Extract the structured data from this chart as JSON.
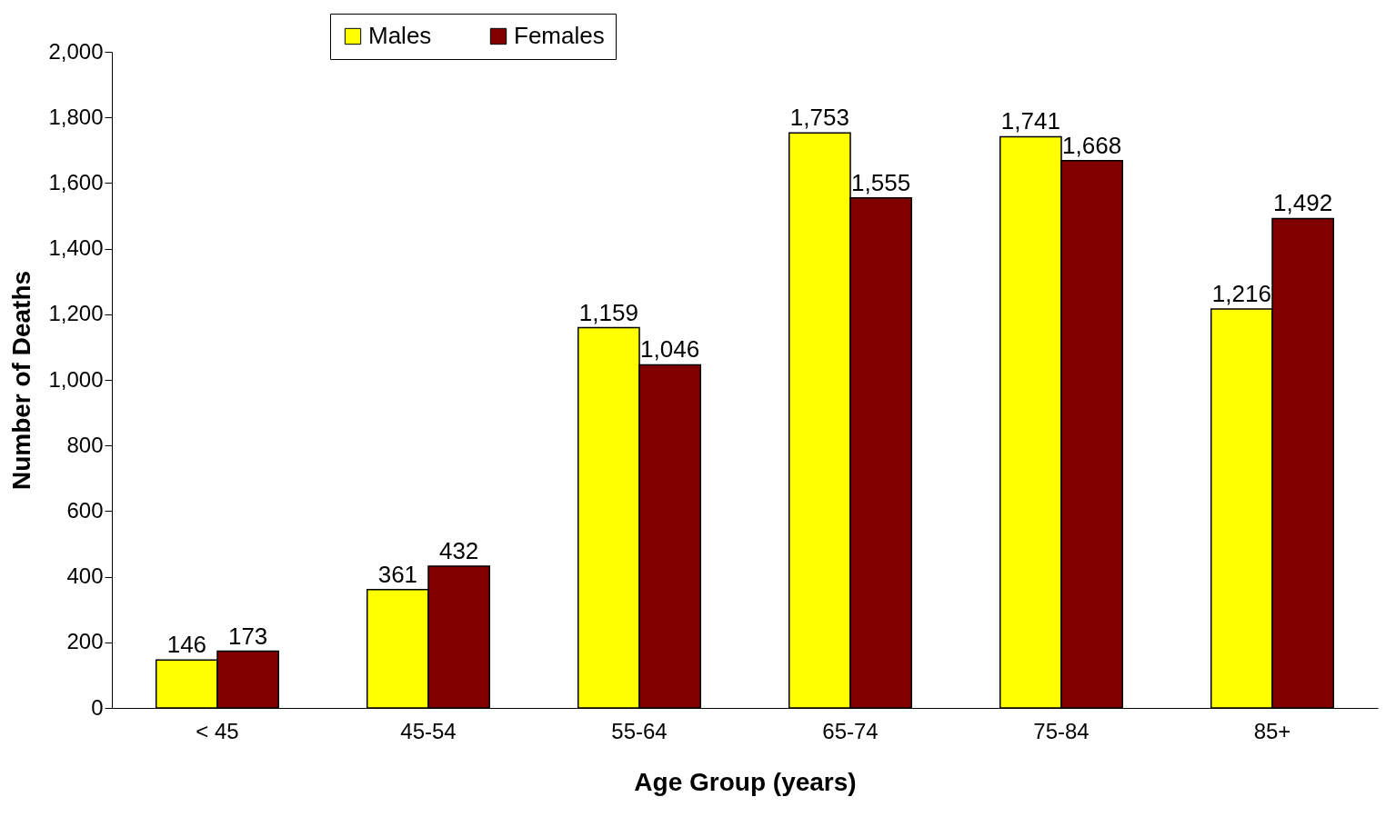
{
  "chart_data": {
    "type": "bar",
    "xlabel": "Age Group (years)",
    "ylabel": "Number of Deaths",
    "categories": [
      "< 45",
      "45-54",
      "55-64",
      "65-74",
      "75-84",
      "85+"
    ],
    "series": [
      {
        "name": "Males",
        "color": "#ffff00",
        "values": [
          146,
          361,
          1159,
          1753,
          1741,
          1216
        ],
        "value_labels": [
          "146",
          "361",
          "1,159",
          "1,753",
          "1,741",
          "1,216"
        ]
      },
      {
        "name": "Females",
        "color": "#800000",
        "values": [
          173,
          432,
          1046,
          1555,
          1668,
          1492
        ],
        "value_labels": [
          "173",
          "432",
          "1,046",
          "1,555",
          "1,668",
          "1,492"
        ]
      }
    ],
    "ylim": [
      0,
      2000
    ],
    "yticks": [
      0,
      {
        "value": 200,
        "label": "200"
      },
      {
        "value": 400,
        "label": "400"
      },
      {
        "value": 600,
        "label": "600"
      },
      {
        "value": 800,
        "label": "800"
      },
      {
        "value": 1000,
        "label": "1,000"
      },
      {
        "value": 1200,
        "label": "1,200"
      },
      {
        "value": 1400,
        "label": "1,400"
      },
      {
        "value": 1600,
        "label": "1,600"
      },
      {
        "value": 1800,
        "label": "1,800"
      },
      {
        "value": 2000,
        "label": "2,000"
      }
    ],
    "grid": false,
    "legend": "top"
  }
}
